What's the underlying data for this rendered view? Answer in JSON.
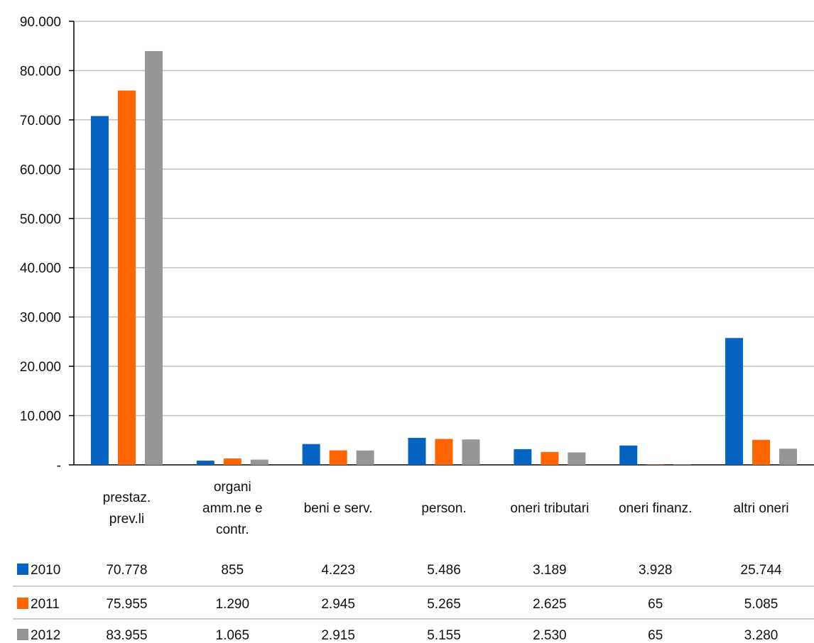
{
  "chart_data": {
    "type": "bar",
    "ylim": [
      0,
      90000
    ],
    "yticks": [
      0,
      10000,
      20000,
      30000,
      40000,
      50000,
      60000,
      70000,
      80000,
      90000
    ],
    "ytick_labels": [
      "-",
      "10.000",
      "20.000",
      "30.000",
      "40.000",
      "50.000",
      "60.000",
      "70.000",
      "80.000",
      "90.000"
    ],
    "grid": true,
    "legend": "data-table",
    "categories": [
      [
        "prestaz.",
        "prev.li"
      ],
      [
        "organi",
        "amm.ne e",
        "contr."
      ],
      [
        "beni e serv."
      ],
      [
        "person."
      ],
      [
        "oneri tributari"
      ],
      [
        "oneri finanz."
      ],
      [
        "altri oneri"
      ]
    ],
    "series": [
      {
        "name": "2010",
        "color": "#0563C1",
        "values": [
          70778,
          855,
          4223,
          5486,
          3189,
          3928,
          25744
        ],
        "labels": [
          "70.778",
          "855",
          "4.223",
          "5.486",
          "3.189",
          "3.928",
          "25.744"
        ]
      },
      {
        "name": "2011",
        "color": "#FF6600",
        "values": [
          75955,
          1290,
          2945,
          5265,
          2625,
          65,
          5085
        ],
        "labels": [
          "75.955",
          "1.290",
          "2.945",
          "5.265",
          "2.625",
          "65",
          "5.085"
        ]
      },
      {
        "name": "2012",
        "color": "#969696",
        "values": [
          83955,
          1065,
          2915,
          5155,
          2530,
          65,
          3280
        ],
        "labels": [
          "83.955",
          "1.065",
          "2.915",
          "5.155",
          "2.530",
          "65",
          "3.280"
        ]
      }
    ]
  }
}
